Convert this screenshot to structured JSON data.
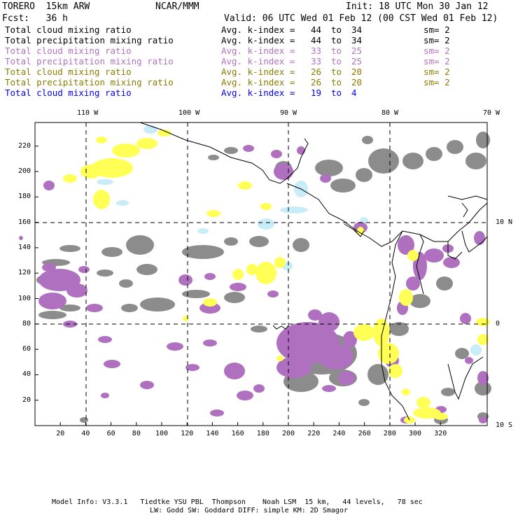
{
  "header": {
    "model": "TORERO  15km ARW",
    "org": "NCAR/MMM",
    "init": "Init: 18 UTC Mon 30 Jan 12",
    "fcst": "Fcst:   36 h",
    "valid": "Valid: 06 UTC Wed 01 Feb 12 (00 CST Wed 01 Feb 12)"
  },
  "legend": [
    {
      "field": "Total cloud mixing ratio",
      "kindex": "Avg. k-index =",
      "from": "44",
      "to": "to",
      "to_val": "34",
      "sm": "sm= 2",
      "color": "#000000"
    },
    {
      "field": "Total precipitation mixing ratio",
      "kindex": "Avg. k-index =",
      "from": "44",
      "to": "to",
      "to_val": "34",
      "sm": "sm= 2",
      "color": "#000000"
    },
    {
      "field": "Total cloud mixing ratio",
      "kindex": "Avg. k-index =",
      "from": "33",
      "to": "to",
      "to_val": "25",
      "sm": "sm= 2",
      "color": "#b070c0"
    },
    {
      "field": "Total precipitation mixing ratio",
      "kindex": "Avg. k-index =",
      "from": "33",
      "to": "to",
      "to_val": "25",
      "sm": "sm= 2",
      "color": "#b070c0"
    },
    {
      "field": "Total cloud mixing ratio",
      "kindex": "Avg. k-index =",
      "from": "26",
      "to": "to",
      "to_val": "20",
      "sm": "sm= 2",
      "color": "#8a7a00"
    },
    {
      "field": "Total precipitation mixing ratio",
      "kindex": "Avg. k-index =",
      "from": "26",
      "to": "to",
      "to_val": "20",
      "sm": "sm= 2",
      "color": "#8a7a00"
    },
    {
      "field": "Total cloud mixing ratio",
      "kindex": "Avg. k-index =",
      "from": "19",
      "to": "to",
      "to_val": "4",
      "sm": "",
      "color": "#0000ee"
    }
  ],
  "map": {
    "lon_labels": [
      "110 W",
      "100 W",
      "90 W",
      "80 W",
      "70 W"
    ],
    "lat_labels": [
      "10 N",
      "0",
      "10 S"
    ],
    "x_ticks": [
      "20",
      "40",
      "60",
      "80",
      "100",
      "120",
      "140",
      "160",
      "180",
      "200",
      "220",
      "240",
      "260",
      "280",
      "300",
      "320"
    ],
    "y_ticks": [
      "20",
      "40",
      "60",
      "80",
      "100",
      "120",
      "140",
      "160",
      "180",
      "200",
      "220"
    ],
    "colors": {
      "gray": "#8c8c8c",
      "purple": "#b070c0",
      "yellow": "#ffff55",
      "lightblue": "#c8ecf8",
      "grid": "#000000"
    }
  },
  "footer": {
    "line1": "Model Info: V3.3.1   Tiedtke YSU PBL  Thompson    Noah LSM  15 km,   44 levels,   78 sec",
    "line2": "LW: Godd SW: Goddard DIFF: simple KM: 2D Smagor"
  }
}
